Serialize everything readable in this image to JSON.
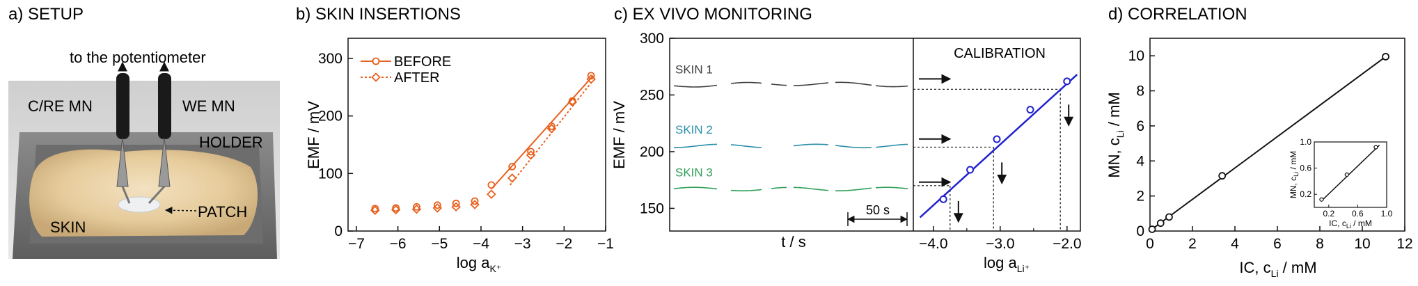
{
  "setup": {
    "title": "a) SETUP",
    "labels": {
      "potentiometer": "to the potentiometer",
      "cre": "C/RE MN",
      "we": "WE MN",
      "holder": "HOLDER",
      "patch": "PATCH",
      "skin": "SKIN"
    }
  },
  "chart_data": [
    {
      "id": "b",
      "type": "line",
      "title": "b) SKIN INSERTIONS",
      "xlabel": "log a",
      "xlabel_sub": "K⁺",
      "ylabel": "EMF / mV",
      "xlim": [
        -7.2,
        -1.0
      ],
      "ylim": [
        0,
        335
      ],
      "xticks": [
        -7,
        -6,
        -5,
        -4,
        -3,
        -2,
        -1
      ],
      "yticks": [
        0,
        100,
        200,
        300
      ],
      "grid": false,
      "legend_position": "top-left",
      "color": "#E8601C",
      "series": [
        {
          "name": "BEFORE",
          "marker": "circle",
          "x": [
            -6.55,
            -6.05,
            -5.55,
            -5.05,
            -4.6,
            -4.15,
            -3.75,
            -3.25,
            -2.8,
            -2.3,
            -1.8,
            -1.35
          ],
          "y": [
            39,
            40,
            42,
            45,
            48,
            52,
            80,
            112,
            138,
            182,
            226,
            270
          ],
          "fit": [
            [
              -3.75,
              73
            ],
            [
              -1.3,
              270
            ]
          ]
        },
        {
          "name": "AFTER",
          "marker": "diamond",
          "x": [
            -6.55,
            -6.05,
            -5.55,
            -5.05,
            -4.6,
            -4.15,
            -3.75,
            -3.25,
            -2.8,
            -2.3,
            -1.8,
            -1.35
          ],
          "y": [
            36,
            37,
            38,
            40,
            42,
            46,
            64,
            92,
            132,
            178,
            224,
            264
          ],
          "fit": [
            [
              -3.3,
              80
            ],
            [
              -1.3,
              262
            ]
          ]
        }
      ]
    },
    {
      "id": "c",
      "type": "line",
      "title": "c) EX VIVO MONITORING",
      "xlabel_left": "t / s",
      "xlabel_right": "log a",
      "xlabel_right_sub": "Li⁺",
      "ylabel": "EMF / mV",
      "ylim": [
        130,
        300
      ],
      "yticks": [
        150,
        200,
        250,
        300
      ],
      "calibration_label": "CALIBRATION",
      "scale_bar_label": "50 s",
      "xlim_right": [
        -4.3,
        -1.8
      ],
      "xticks_right": [
        -4.0,
        -3.0,
        -2.0
      ],
      "xticklabels_right": [
        "-4.0",
        "-3.0",
        "-2.0"
      ],
      "traces": [
        {
          "name": "SKIN 1",
          "color": "#404040",
          "level": 258
        },
        {
          "name": "SKIN 2",
          "color": "#2A8FA8",
          "level": 205
        },
        {
          "name": "SKIN 3",
          "color": "#2E9F58",
          "level": 167
        }
      ],
      "calibration": {
        "color": "#1F1FD0",
        "x": [
          -3.85,
          -3.45,
          -3.05,
          -2.55,
          -2.0
        ],
        "y": [
          158,
          184,
          211,
          237,
          262
        ],
        "fit": [
          [
            -4.2,
            142
          ],
          [
            -1.85,
            268
          ]
        ],
        "readouts": [
          {
            "emf": 255,
            "log_a": -2.1
          },
          {
            "emf": 204,
            "log_a": -3.1
          },
          {
            "emf": 170,
            "log_a": -3.75
          }
        ]
      }
    },
    {
      "id": "d",
      "type": "scatter",
      "title": "d) CORRELATION",
      "xlabel": "IC, c",
      "xlabel_sub": "Li",
      "xlabel_unit": " / mM",
      "ylabel": "MN, c",
      "ylabel_sub": "Li",
      "ylabel_unit": " / mM",
      "xlim": [
        0,
        12
      ],
      "ylim": [
        0,
        11
      ],
      "xticks": [
        0,
        2,
        4,
        6,
        8,
        10,
        12
      ],
      "yticks": [
        0,
        2,
        4,
        6,
        8,
        10
      ],
      "grid": false,
      "points": {
        "x": [
          0.1,
          0.5,
          0.9,
          3.4,
          11.1
        ],
        "y": [
          0.1,
          0.45,
          0.8,
          3.15,
          9.95
        ]
      },
      "fit": [
        [
          0,
          0.02
        ],
        [
          11.1,
          9.95
        ]
      ],
      "inset": {
        "xlabel": "IC, c",
        "xlabel_sub": "Li",
        "xlabel_unit": " / mM",
        "ylabel": "MN, c",
        "ylabel_sub": "Li",
        "ylabel_unit": " / mM",
        "xlim": [
          0,
          1
        ],
        "ylim": [
          0,
          1
        ],
        "xticks": [
          0.2,
          0.6,
          1.0
        ],
        "xticklabels": [
          "0.2",
          "0.6",
          "1.0"
        ],
        "yticks": [
          0.2,
          0.6,
          1.0
        ],
        "yticklabels": [
          "0.2",
          "0.6",
          "1.0"
        ],
        "points": {
          "x": [
            0.1,
            0.45,
            0.85
          ],
          "y": [
            0.12,
            0.5,
            0.92
          ]
        },
        "fit": [
          [
            0.1,
            0.1
          ],
          [
            0.9,
            0.95
          ]
        ]
      }
    }
  ]
}
